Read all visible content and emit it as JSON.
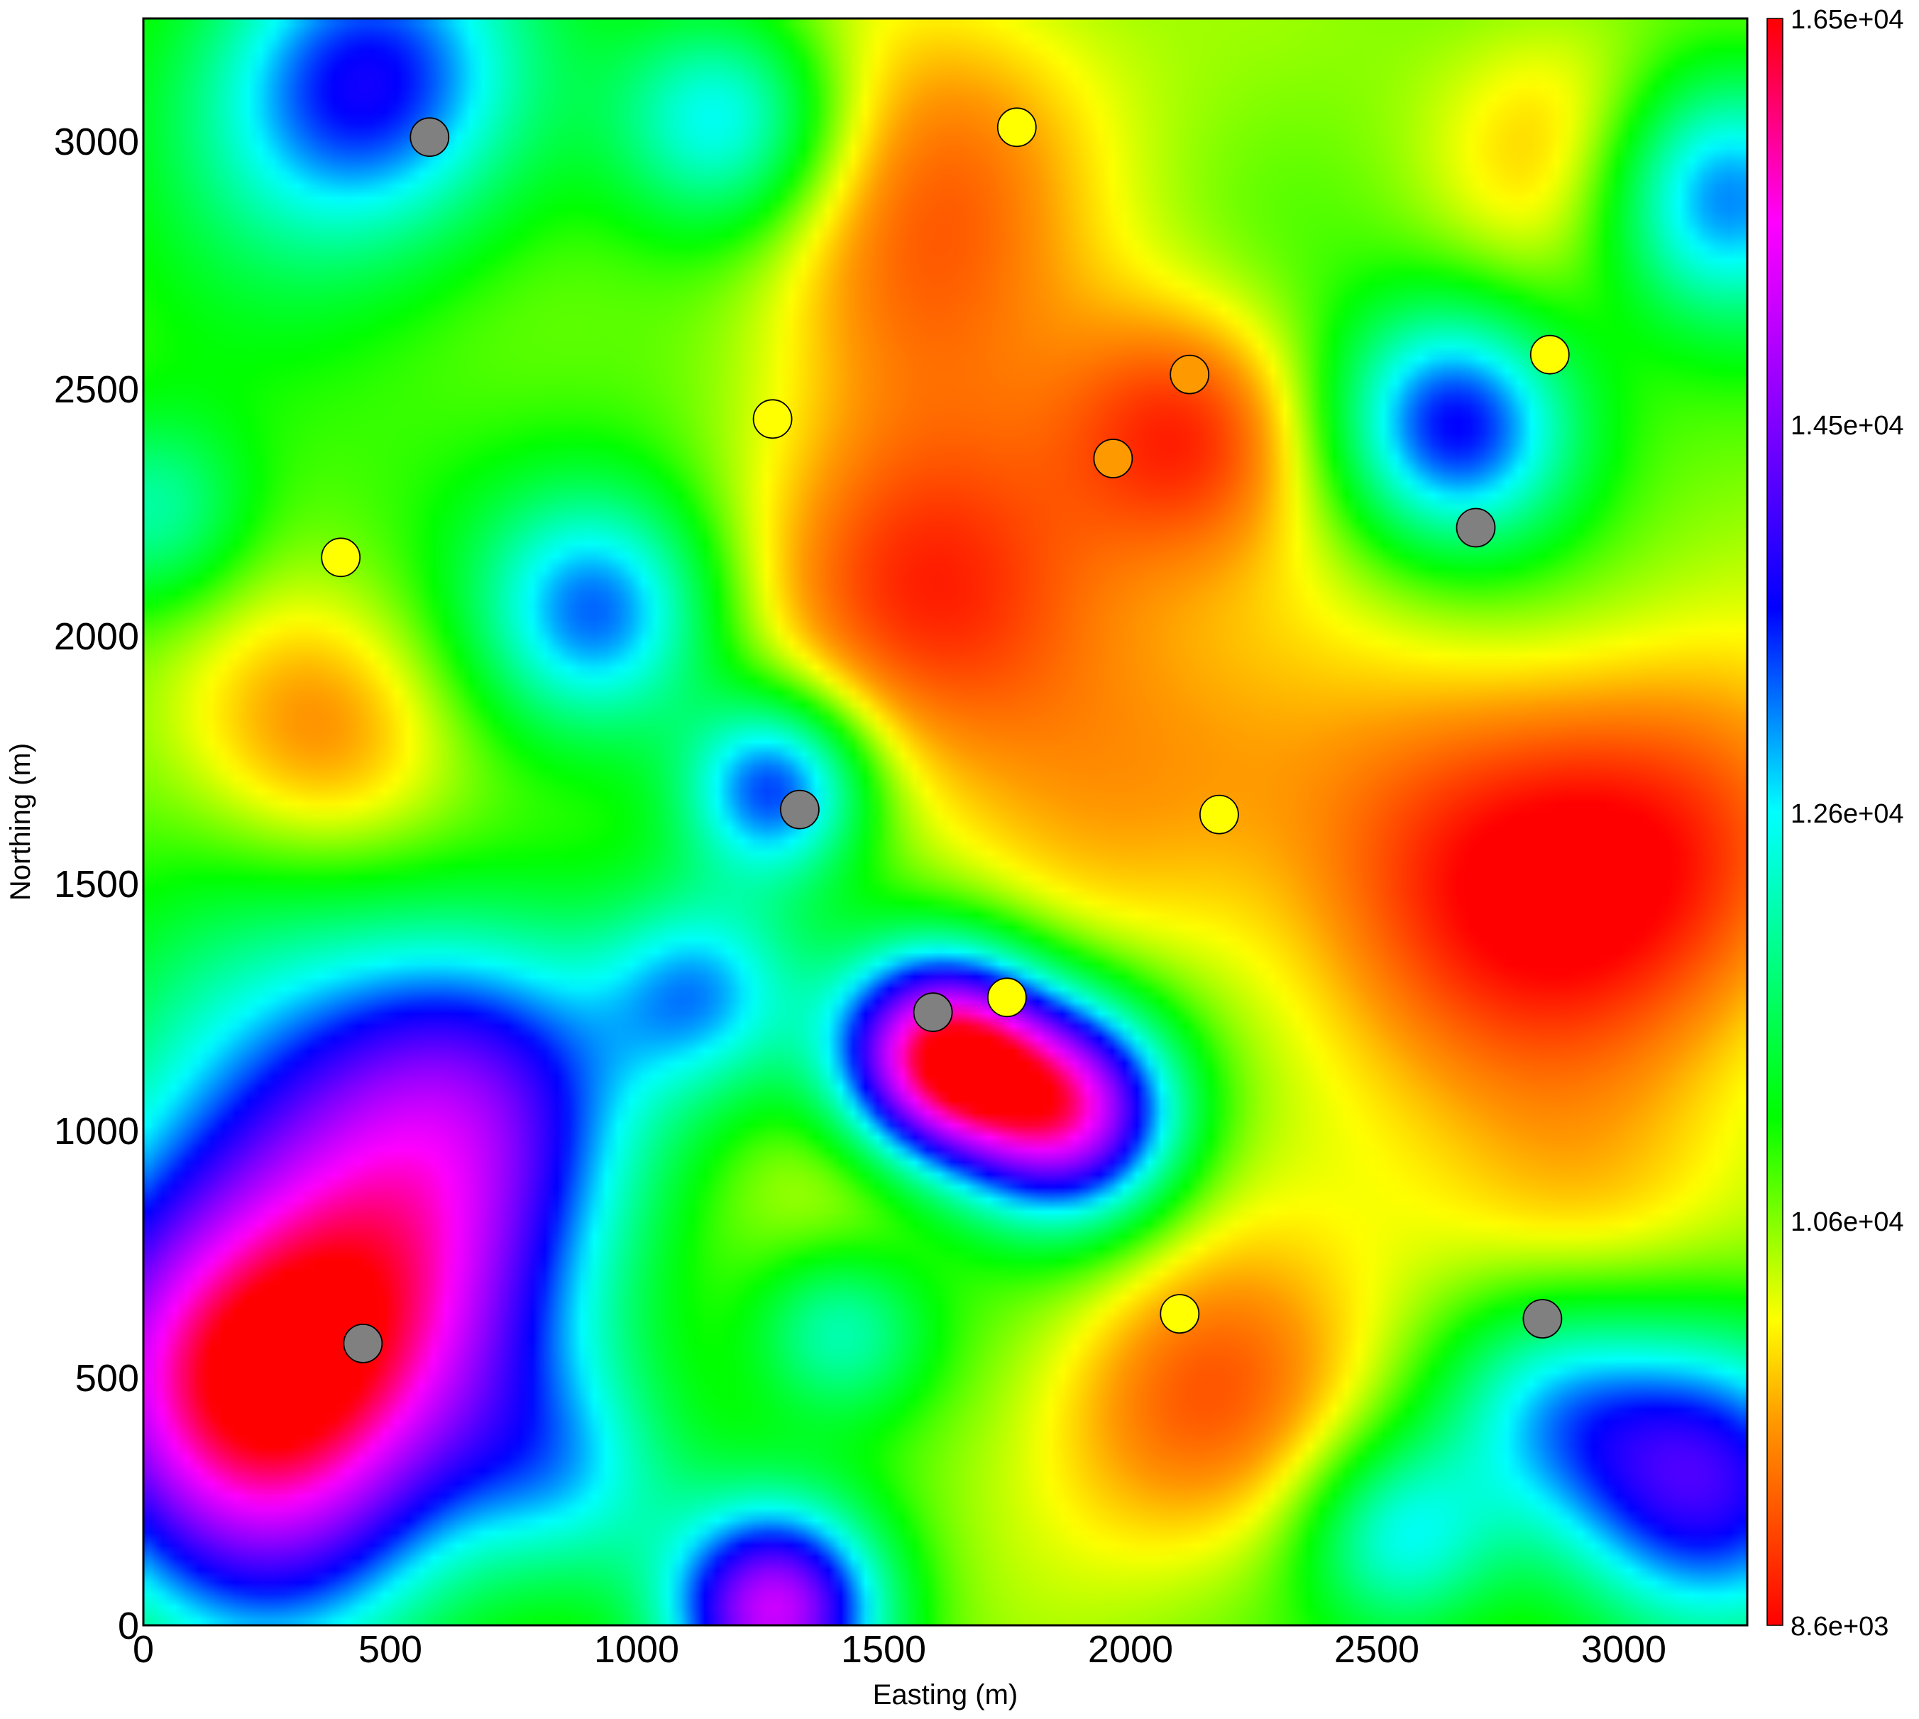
{
  "chart_data": {
    "type": "heatmap",
    "title": "",
    "xlabel": "Easting (m)",
    "ylabel": "Northing (m)",
    "xlim": [
      0,
      3250
    ],
    "ylim": [
      0,
      3250
    ],
    "x_ticks": [
      0,
      500,
      1000,
      1500,
      2000,
      2500,
      3000
    ],
    "y_ticks": [
      0,
      500,
      1000,
      1500,
      2000,
      2500,
      3000
    ],
    "colorbar": {
      "min": 8600,
      "max": 16500,
      "tick_values": [
        8600,
        10600,
        12600,
        14500,
        16500
      ],
      "tick_labels": [
        "8.6e+03",
        "1.06e+04",
        "1.26e+04",
        "1.45e+04",
        "1.65e+04"
      ],
      "stops": [
        {
          "value": 8600,
          "color": "#ff0000"
        },
        {
          "value": 9600,
          "color": "#ff9900"
        },
        {
          "value": 10100,
          "color": "#ffff00"
        },
        {
          "value": 11100,
          "color": "#00ff00"
        },
        {
          "value": 12600,
          "color": "#00ffff"
        },
        {
          "value": 13600,
          "color": "#0000ff"
        },
        {
          "value": 14500,
          "color": "#7f00ff"
        },
        {
          "value": 15500,
          "color": "#ff00ff"
        },
        {
          "value": 16500,
          "color": "#ff0000"
        }
      ]
    },
    "field_features": [
      {
        "x": 1620,
        "y": 2100,
        "amp": -1900,
        "sigma": 260
      },
      {
        "x": 2120,
        "y": 2420,
        "amp": -1700,
        "sigma": 190
      },
      {
        "x": 2700,
        "y": 1500,
        "amp": -1700,
        "sigma": 330
      },
      {
        "x": 2150,
        "y": 450,
        "amp": -1500,
        "sigma": 240
      },
      {
        "x": 3150,
        "y": 1550,
        "amp": -1300,
        "sigma": 280
      },
      {
        "x": 370,
        "y": 1800,
        "amp": -1200,
        "sigma": 200
      },
      {
        "x": 2900,
        "y": 3000,
        "amp": -1100,
        "sigma": 200
      },
      {
        "x": 1650,
        "y": 3050,
        "amp": -1000,
        "sigma": 260
      },
      {
        "x": 1500,
        "y": 2700,
        "amp": -900,
        "sigma": 240
      },
      {
        "x": 2000,
        "y": 1700,
        "amp": -800,
        "sigma": 260
      },
      {
        "x": 1460,
        "y": 900,
        "amp": -600,
        "sigma": 170
      },
      {
        "x": 2900,
        "y": 800,
        "amp": -900,
        "sigma": 230
      },
      {
        "x": 220,
        "y": 3000,
        "amp": 300,
        "sigma": 300
      },
      {
        "x": 700,
        "y": 2300,
        "amp": 200,
        "sigma": 300
      },
      {
        "x": 1620,
        "y": 1150,
        "amp": 5800,
        "sigma": 150
      },
      {
        "x": 1880,
        "y": 1040,
        "amp": 4500,
        "sigma": 150
      },
      {
        "x": 1280,
        "y": 1700,
        "amp": 2800,
        "sigma": 130
      },
      {
        "x": 1280,
        "y": 30,
        "amp": 4200,
        "sigma": 150
      },
      {
        "x": 2660,
        "y": 2430,
        "amp": 3000,
        "sigma": 170
      },
      {
        "x": 450,
        "y": 3120,
        "amp": 2800,
        "sigma": 230
      },
      {
        "x": 1180,
        "y": 3050,
        "amp": 2100,
        "sigma": 160
      },
      {
        "x": 3180,
        "y": 2900,
        "amp": 2600,
        "sigma": 180
      },
      {
        "x": 930,
        "y": 2050,
        "amp": 2400,
        "sigma": 170
      },
      {
        "x": 120,
        "y": 500,
        "amp": 3500,
        "sigma": 260
      },
      {
        "x": 500,
        "y": 600,
        "amp": 2800,
        "sigma": 270
      },
      {
        "x": 350,
        "y": 950,
        "amp": 2200,
        "sigma": 330
      },
      {
        "x": 700,
        "y": 1100,
        "amp": 2300,
        "sigma": 240
      },
      {
        "x": 1130,
        "y": 1280,
        "amp": 1800,
        "sigma": 140
      },
      {
        "x": 1410,
        "y": 600,
        "amp": 1600,
        "sigma": 130
      },
      {
        "x": 3150,
        "y": 300,
        "amp": 3300,
        "sigma": 220
      },
      {
        "x": 2550,
        "y": 180,
        "amp": 1800,
        "sigma": 140
      },
      {
        "x": 2830,
        "y": 450,
        "amp": 1500,
        "sigma": 170
      },
      {
        "x": 300,
        "y": 200,
        "amp": 1800,
        "sigma": 250
      },
      {
        "x": 860,
        "y": 300,
        "amp": 1400,
        "sigma": 160
      },
      {
        "x": 20,
        "y": 2250,
        "amp": 1400,
        "sigma": 140
      }
    ],
    "series": [
      {
        "name": "gray markers",
        "color": "#808080",
        "points": [
          {
            "x": 580,
            "y": 3010
          },
          {
            "x": 2700,
            "y": 2220
          },
          {
            "x": 1330,
            "y": 1650
          },
          {
            "x": 1600,
            "y": 1240
          },
          {
            "x": 445,
            "y": 570
          },
          {
            "x": 2835,
            "y": 620
          }
        ]
      },
      {
        "name": "yellow markers",
        "color": "#ffff00",
        "points": [
          {
            "x": 1770,
            "y": 3030
          },
          {
            "x": 2850,
            "y": 2570
          },
          {
            "x": 1275,
            "y": 2440
          },
          {
            "x": 400,
            "y": 2160
          },
          {
            "x": 2180,
            "y": 1640
          },
          {
            "x": 1750,
            "y": 1270
          },
          {
            "x": 2100,
            "y": 630
          }
        ]
      },
      {
        "name": "orange markers",
        "color": "#ff9900",
        "points": [
          {
            "x": 2120,
            "y": 2530
          },
          {
            "x": 1965,
            "y": 2360
          }
        ]
      }
    ]
  }
}
